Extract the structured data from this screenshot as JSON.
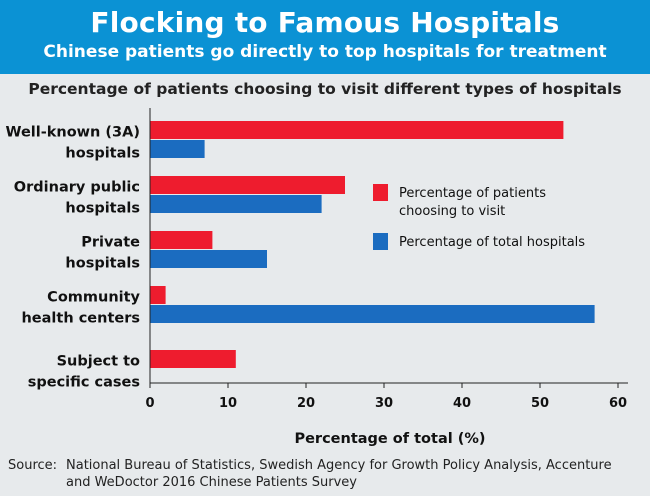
{
  "header": {
    "title": "Flocking to Famous Hospitals",
    "subtitle": "Chinese patients go directly to top hospitals for treatment"
  },
  "colors": {
    "banner": "#0b92d4",
    "background": "#e7eaec",
    "choosing": "#ee1c2e",
    "total": "#1b6cc0"
  },
  "chart_data": {
    "type": "bar",
    "orientation": "horizontal",
    "title": "Percentage of patients choosing to visit different types of hospitals",
    "xlabel": "Percentage of total (%)",
    "ylabel": "",
    "xlim": [
      0,
      60
    ],
    "xticks": [
      "0",
      "10",
      "20",
      "30",
      "40",
      "50",
      "60"
    ],
    "grid": false,
    "legend_position": "right",
    "categories": [
      [
        "Well-known (3A)",
        "hospitals"
      ],
      [
        "Ordinary public",
        "hospitals"
      ],
      [
        "Private",
        "hospitals"
      ],
      [
        "Community",
        "health centers"
      ],
      [
        "Subject to",
        "specific cases"
      ]
    ],
    "series": [
      {
        "name": "Percentage of patients choosing to visit",
        "legend_lines": [
          "Percentage of patients",
          "choosing to visit"
        ],
        "color": "#ee1c2e",
        "values": [
          53,
          25,
          8,
          2,
          11
        ]
      },
      {
        "name": "Percentage of total hospitals",
        "legend_lines": [
          "Percentage of total hospitals"
        ],
        "color": "#1b6cc0",
        "values": [
          7,
          22,
          15,
          57,
          null
        ]
      }
    ]
  },
  "source": {
    "label": "Source:",
    "text": "National Bureau of Statistics, Swedish Agency for Growth Policy Analysis, Accenture and WeDoctor 2016 Chinese Patients Survey"
  }
}
